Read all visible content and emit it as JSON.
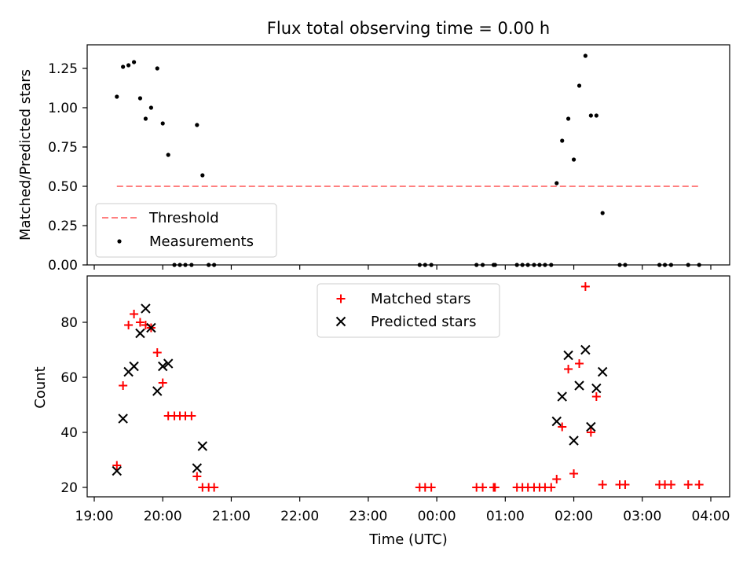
{
  "chart_data": [
    {
      "type": "scatter",
      "title": "Flux total observing time = 0.00 h",
      "ylabel": "Matched/Predicted stars",
      "xlabel": "",
      "ylim": [
        0,
        1.4
      ],
      "yticks": [
        "0.00",
        "0.25",
        "0.50",
        "0.75",
        "1.00",
        "1.25"
      ],
      "legend_position": "lower-left",
      "series": [
        {
          "name": "Threshold",
          "kind": "dashed-line",
          "color": "#ff8080",
          "x": [
            19.33,
            23.33,
            27.83
          ],
          "y": [
            0.5,
            0.5,
            0.5
          ]
        },
        {
          "name": "Measurements",
          "kind": "points",
          "color": "#000000",
          "x": [
            19.33,
            19.42,
            19.5,
            19.58,
            19.67,
            19.75,
            19.83,
            19.92,
            20.0,
            20.08,
            20.17,
            20.25,
            20.33,
            20.42,
            20.5,
            20.58,
            20.67,
            20.75,
            23.75,
            23.83,
            23.92,
            24.58,
            24.67,
            24.83,
            24.85,
            25.17,
            25.25,
            25.33,
            25.42,
            25.5,
            25.58,
            25.67,
            25.75,
            25.83,
            25.92,
            26.0,
            26.08,
            26.17,
            26.25,
            26.33,
            26.42,
            26.67,
            26.75,
            27.25,
            27.33,
            27.42,
            27.67,
            27.83
          ],
          "y": [
            1.07,
            1.26,
            1.27,
            1.29,
            1.06,
            0.93,
            1.0,
            1.25,
            0.9,
            0.7,
            0.0,
            0.0,
            0.0,
            0.0,
            0.89,
            0.57,
            0.0,
            0.0,
            0.0,
            0.0,
            0.0,
            0.0,
            0.0,
            0.0,
            0.0,
            0.0,
            0.0,
            0.0,
            0.0,
            0.0,
            0.0,
            0.0,
            0.52,
            0.79,
            0.93,
            0.67,
            1.14,
            1.33,
            0.95,
            0.95,
            0.33,
            0.0,
            0.0,
            0.0,
            0.0,
            0.0,
            0.0,
            0.0
          ]
        }
      ]
    },
    {
      "type": "scatter",
      "title": "",
      "ylabel": "Count",
      "xlabel": "Time (UTC)",
      "ylim": [
        16,
        96
      ],
      "xlim": [
        19.0,
        28.25
      ],
      "yticks": [
        "20",
        "40",
        "60",
        "80"
      ],
      "xticks": [
        "19:00",
        "20:00",
        "21:00",
        "22:00",
        "23:00",
        "00:00",
        "01:00",
        "02:00",
        "03:00",
        "04:00"
      ],
      "legend_position": "upper-center",
      "series": [
        {
          "name": "Matched stars",
          "kind": "plus",
          "color": "#ff0000",
          "x": [
            19.33,
            19.42,
            19.5,
            19.58,
            19.67,
            19.75,
            19.83,
            19.92,
            20.0,
            20.08,
            20.17,
            20.25,
            20.33,
            20.42,
            20.5,
            20.58,
            20.67,
            20.75,
            23.75,
            23.83,
            23.92,
            24.58,
            24.67,
            24.83,
            24.85,
            25.17,
            25.25,
            25.33,
            25.42,
            25.5,
            25.58,
            25.67,
            25.75,
            25.83,
            25.92,
            26.0,
            26.08,
            26.17,
            26.25,
            26.33,
            26.42,
            26.67,
            26.75,
            27.25,
            27.33,
            27.42,
            27.67,
            27.83
          ],
          "y": [
            28,
            57,
            79,
            83,
            80,
            79,
            78,
            69,
            58,
            46,
            46,
            46,
            46,
            46,
            24,
            20,
            20,
            20,
            20,
            20,
            20,
            20,
            20,
            20,
            20,
            20,
            20,
            20,
            20,
            20,
            20,
            20,
            23,
            42,
            63,
            25,
            65,
            93,
            40,
            53,
            21,
            21,
            21,
            21,
            21,
            21,
            21,
            21
          ]
        },
        {
          "name": "Predicted stars",
          "kind": "x",
          "color": "#000000",
          "x": [
            19.33,
            19.42,
            19.5,
            19.58,
            19.67,
            19.75,
            19.83,
            19.92,
            20.0,
            20.08,
            20.5,
            20.58,
            25.75,
            25.83,
            25.92,
            26.0,
            26.08,
            26.17,
            26.25,
            26.33,
            26.42
          ],
          "y": [
            26,
            45,
            62,
            64,
            76,
            85,
            78,
            55,
            64,
            65,
            27,
            35,
            44,
            53,
            68,
            37,
            57,
            70,
            42,
            56,
            62
          ]
        }
      ]
    }
  ]
}
